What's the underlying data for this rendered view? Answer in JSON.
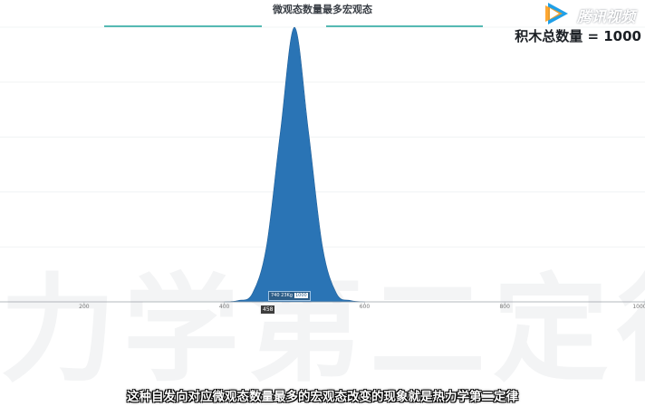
{
  "video": {
    "watermark_text": "力学第二定律",
    "platform_logo_text": "腾讯视频",
    "subtitle": "这种自发向对应微观态数量最多的宏观态改变的现象就是热力学第二定律"
  },
  "chart": {
    "title": "微观态数量最多宏观态",
    "total_label": "积木总数量 = 1000",
    "tooltip_label": "740 23Kg",
    "tooltip_value": "1000",
    "x_marker_value": "458",
    "accent_color": "#55b9b3",
    "fill_color": "#2a74b5"
  },
  "chart_data": {
    "type": "area",
    "title": "微观态数量最多宏观态",
    "xlabel": "",
    "ylabel": "",
    "x_ticks": [
      "200",
      "400",
      "600",
      "800",
      "1000"
    ],
    "x_tick_values": [
      200,
      400,
      600,
      800,
      1000
    ],
    "xlim": [
      80,
      1000
    ],
    "ylim": [
      0,
      1.0
    ],
    "grid": true,
    "series": [
      {
        "values": [
          {
            "x": 400,
            "y": 0.0
          },
          {
            "x": 420,
            "y": 0.005
          },
          {
            "x": 440,
            "y": 0.03
          },
          {
            "x": 460,
            "y": 0.2
          },
          {
            "x": 480,
            "y": 0.62
          },
          {
            "x": 500,
            "y": 1.0
          },
          {
            "x": 520,
            "y": 0.62
          },
          {
            "x": 540,
            "y": 0.2
          },
          {
            "x": 560,
            "y": 0.03
          },
          {
            "x": 580,
            "y": 0.005
          },
          {
            "x": 600,
            "y": 0.0
          }
        ]
      }
    ]
  }
}
